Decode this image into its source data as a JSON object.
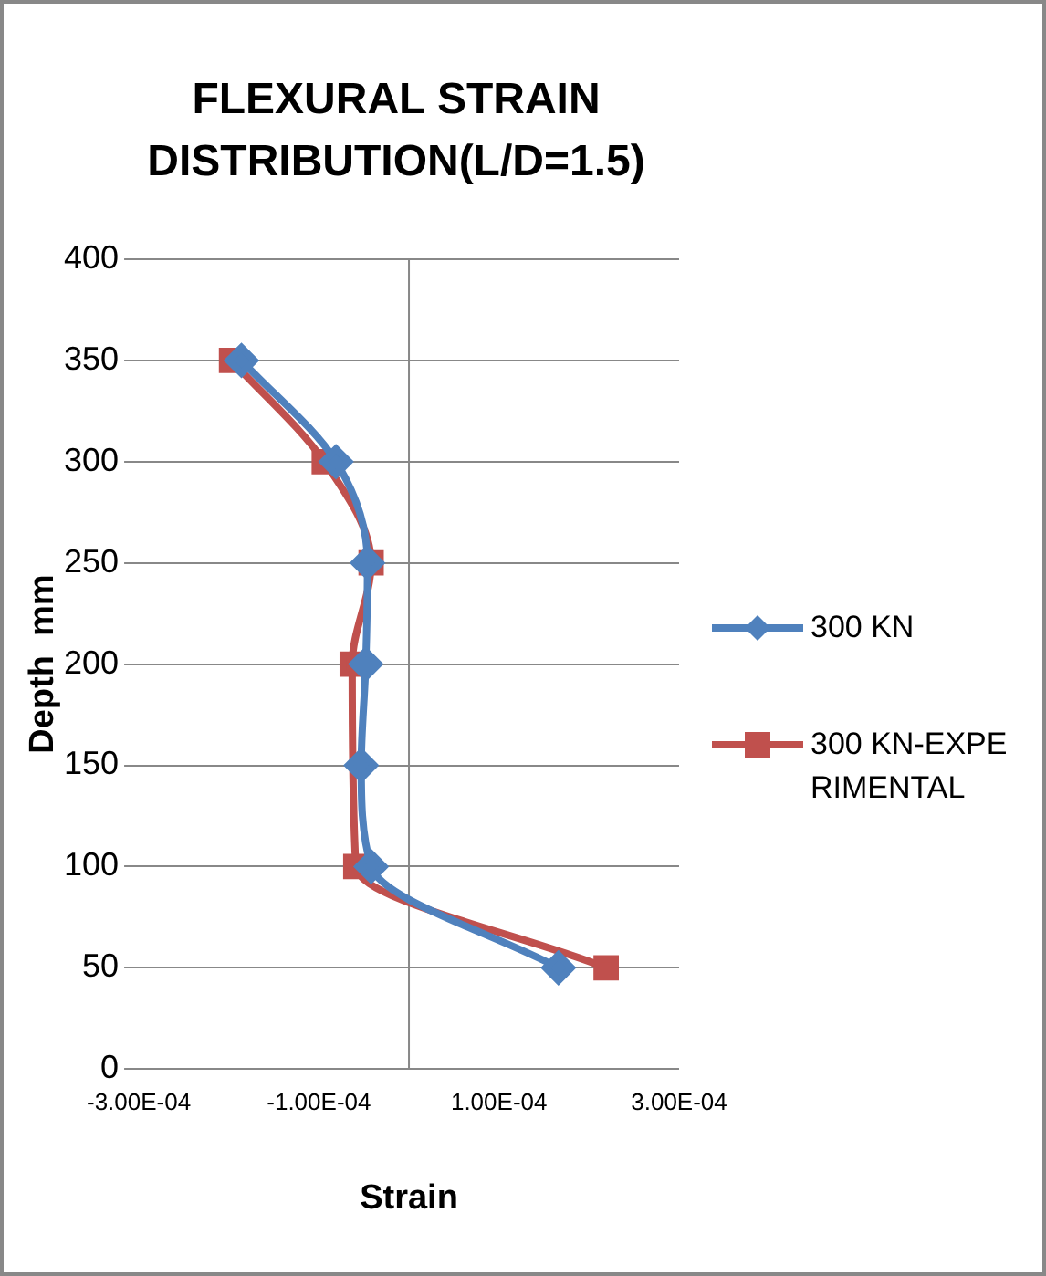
{
  "chart_data": {
    "type": "line",
    "title": "FLEXURAL STRAIN DISTRIBUTION(L/D=1.5)",
    "xlabel": "Strain",
    "ylabel": "Depth  mm",
    "xlim": [
      -0.0003,
      0.0003
    ],
    "xticks": [
      {
        "value": -0.0003,
        "label": "-3.00E-04"
      },
      {
        "value": -0.0001,
        "label": "-1.00E-04"
      },
      {
        "value": 0.0001,
        "label": "1.00E-04"
      },
      {
        "value": 0.0003,
        "label": "3.00E-04"
      }
    ],
    "ylim": [
      0,
      400
    ],
    "yticks": [
      0,
      50,
      100,
      150,
      200,
      250,
      300,
      350,
      400
    ],
    "grid": "y",
    "legend": "right",
    "series": [
      {
        "name": "300 KN",
        "color": "#4f81bd",
        "marker": "diamond",
        "x": [
          0.000166,
          -4.2e-05,
          -5.3e-05,
          -4.8e-05,
          -4.6e-05,
          -8.1e-05,
          -0.000186
        ],
        "values": [
          50,
          100,
          150,
          200,
          250,
          300,
          350
        ]
      },
      {
        "name": "300 KN-EXPERIMENTAL",
        "color": "#c0504d",
        "marker": "square",
        "x": [
          0.000219,
          -5.9e-05,
          -6.3e-05,
          -4.2e-05,
          -9.4e-05,
          -0.000197
        ],
        "values": [
          50,
          100,
          200,
          250,
          300,
          350
        ]
      }
    ]
  }
}
